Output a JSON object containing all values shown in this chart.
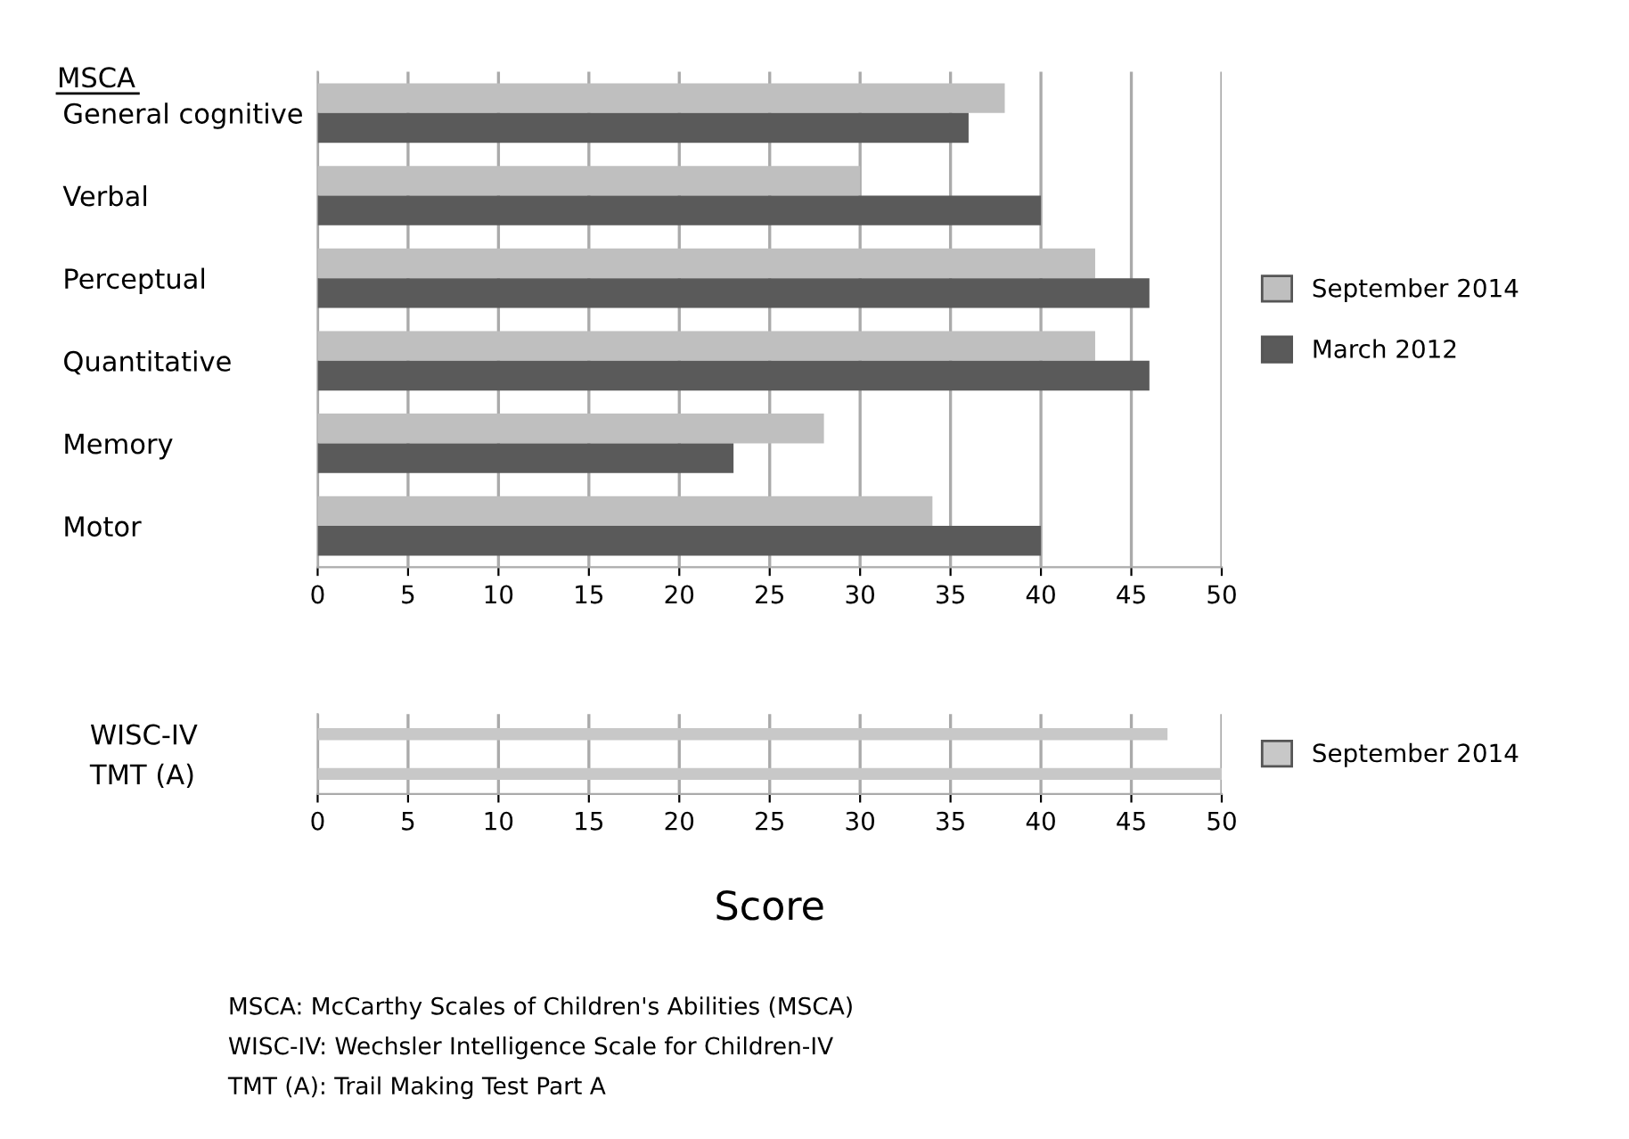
{
  "chart_data": [
    {
      "type": "bar",
      "orientation": "horizontal",
      "categories": [
        "General cognitive",
        "Verbal",
        "Perceptual",
        "Quantitative",
        "Memory",
        "Motor"
      ],
      "series": [
        {
          "name": "September 2014",
          "color": "#bfbfbf",
          "values": [
            38,
            30,
            43,
            43,
            28,
            34
          ]
        },
        {
          "name": "March 2012",
          "color": "#5a5a5a",
          "values": [
            36,
            40,
            46,
            46,
            23,
            40
          ]
        }
      ],
      "xlim": [
        0,
        50
      ],
      "xticks": [
        0,
        5,
        10,
        15,
        20,
        25,
        30,
        35,
        40,
        45,
        50
      ],
      "grid": "x",
      "legend": "right",
      "annotations": [
        "MSCA"
      ]
    },
    {
      "type": "bar",
      "orientation": "horizontal",
      "categories": [
        "WISC-IV",
        "TMT (A)"
      ],
      "series": [
        {
          "name": "September 2014",
          "color": "#c8c8c8",
          "values": [
            47,
            50
          ]
        }
      ],
      "xlim": [
        0,
        50
      ],
      "xticks": [
        0,
        5,
        10,
        15,
        20,
        25,
        30,
        35,
        40,
        45,
        50
      ],
      "grid": "x",
      "legend": "right",
      "xlabel": "Score",
      "annotations": [
        "MSCA: McCarthy Scales of Children's Abilities (MSCA)",
        "WISC-IV: Wechsler Intelligence Scale for Children-IV",
        "TMT (A): Trail Making Test Part A"
      ]
    }
  ]
}
